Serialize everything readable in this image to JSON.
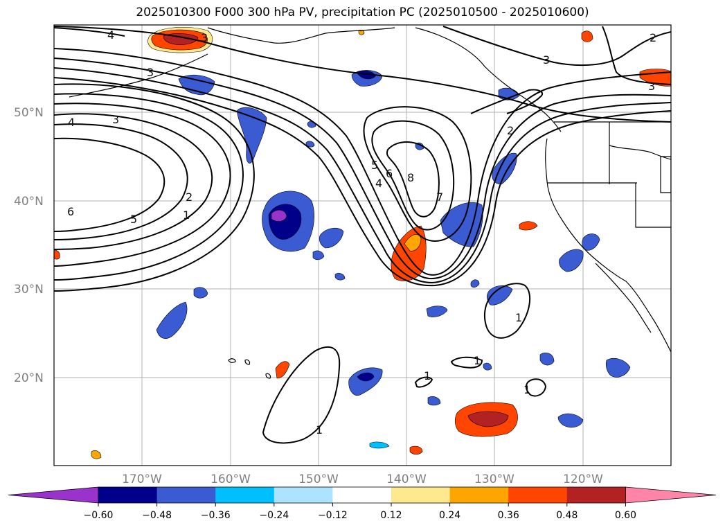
{
  "title": "2025010300 F000 300 hPa PV, precipitation PC (2025010500 - 2025010600)",
  "lat_labels": [
    "50°N",
    "40°N",
    "30°N",
    "20°N"
  ],
  "lon_labels": [
    "170°W",
    "160°W",
    "150°W",
    "140°W",
    "130°W",
    "120°W"
  ],
  "contour_labels": [
    "4",
    "3",
    "3",
    "3",
    "4",
    "3",
    "6",
    "5",
    "2",
    "1",
    "2",
    "3",
    "5",
    "4",
    "6",
    "8",
    "7",
    "2",
    "1",
    "1",
    "1",
    "1",
    "1",
    "3"
  ],
  "colorbar": {
    "levels": [
      "−0.60",
      "−0.48",
      "−0.36",
      "−0.24",
      "−0.12",
      "0.12",
      "0.24",
      "0.36",
      "0.48",
      "0.60"
    ],
    "colors": [
      "#9933cc",
      "#00008b",
      "#3a5bd1",
      "#00bfff",
      "#aee3ff",
      "#ffffff",
      "#ffe98f",
      "#ffa500",
      "#ff4500",
      "#b22222",
      "#ff85a8"
    ]
  }
}
